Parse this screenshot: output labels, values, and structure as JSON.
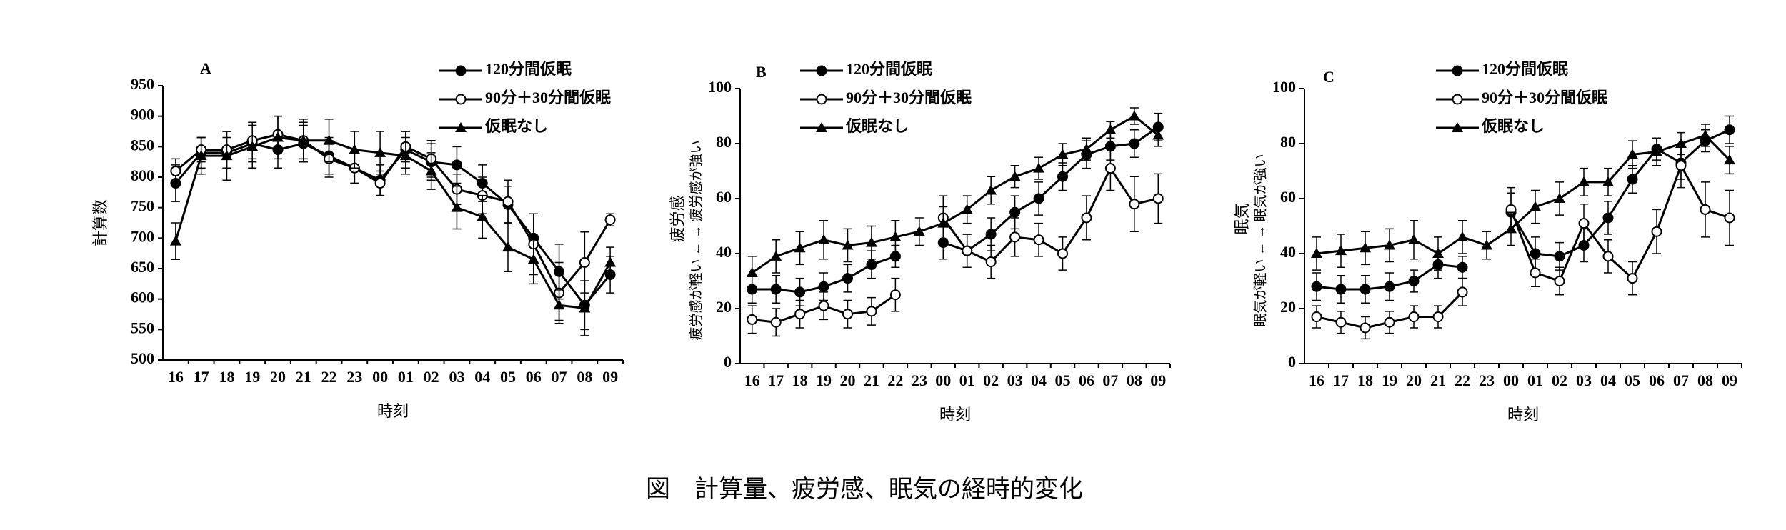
{
  "caption": "図　計算量、疲労感、眠気の経時的変化",
  "chart_data": [
    {
      "type": "line",
      "panel": "A",
      "ylabel": "計算数",
      "xlabel": "時刻",
      "categories": [
        "16",
        "17",
        "18",
        "19",
        "20",
        "21",
        "22",
        "23",
        "00",
        "01",
        "02",
        "03",
        "04",
        "05",
        "06",
        "07",
        "08",
        "09"
      ],
      "ylim": [
        500,
        950
      ],
      "yticks": [
        500,
        550,
        600,
        650,
        700,
        750,
        800,
        850,
        900,
        950
      ],
      "series": [
        {
          "name": "120分間仮眠",
          "color": "#000000",
          "marker": "filled-circle",
          "values": [
            790,
            840,
            840,
            855,
            845,
            855,
            835,
            815,
            795,
            845,
            825,
            820,
            790,
            755,
            700,
            645,
            590,
            640
          ],
          "errors": [
            30,
            25,
            25,
            30,
            30,
            30,
            30,
            25,
            25,
            30,
            30,
            30,
            30,
            30,
            40,
            45,
            40,
            30
          ]
        },
        {
          "name": "90分＋30分間仮眠",
          "color": "#000000",
          "marker": "open-circle",
          "values": [
            810,
            845,
            845,
            860,
            870,
            860,
            830,
            815,
            790,
            850,
            830,
            780,
            770,
            760,
            690,
            610,
            660,
            730
          ],
          "errors": [
            20,
            20,
            30,
            30,
            30,
            30,
            30,
            25,
            20,
            25,
            30,
            25,
            30,
            35,
            50,
            50,
            50,
            10
          ]
        },
        {
          "name": "仮眠なし",
          "color": "#000000",
          "marker": "triangle",
          "values": [
            695,
            835,
            835,
            850,
            865,
            860,
            860,
            845,
            840,
            835,
            810,
            750,
            735,
            685,
            665,
            590,
            585,
            660
          ],
          "errors": [
            30,
            30,
            40,
            35,
            35,
            35,
            35,
            30,
            35,
            30,
            30,
            35,
            35,
            40,
            40,
            25,
            45,
            25
          ]
        }
      ]
    },
    {
      "type": "line",
      "panel": "B",
      "ylabel": "疲労感",
      "ylabel_sub": "疲労感が軽い ← → 疲労感が強い",
      "xlabel": "時刻",
      "categories": [
        "16",
        "17",
        "18",
        "19",
        "20",
        "21",
        "22",
        "23",
        "00",
        "01",
        "02",
        "03",
        "04",
        "05",
        "06",
        "07",
        "08",
        "09"
      ],
      "ylim": [
        0,
        100
      ],
      "yticks": [
        0,
        20,
        40,
        60,
        80,
        100
      ],
      "series": [
        {
          "name": "120分間仮眠",
          "color": "#000000",
          "marker": "filled-circle",
          "values": [
            27,
            27,
            26,
            28,
            31,
            36,
            39,
            null,
            44,
            41,
            47,
            55,
            60,
            68,
            76,
            79,
            80,
            86
          ],
          "errors": [
            5,
            5,
            5,
            5,
            5,
            5,
            4,
            null,
            6,
            6,
            6,
            6,
            6,
            5,
            5,
            5,
            5,
            5
          ]
        },
        {
          "name": "90分＋30分間仮眠",
          "color": "#000000",
          "marker": "open-circle",
          "values": [
            16,
            15,
            18,
            21,
            18,
            19,
            25,
            null,
            53,
            41,
            37,
            46,
            45,
            40,
            53,
            71,
            58,
            60
          ],
          "errors": [
            5,
            5,
            5,
            5,
            5,
            5,
            6,
            null,
            8,
            6,
            6,
            7,
            6,
            6,
            8,
            8,
            10,
            9
          ]
        },
        {
          "name": "仮眠なし",
          "color": "#000000",
          "marker": "triangle",
          "values": [
            33,
            39,
            42,
            45,
            43,
            44,
            46,
            48,
            51,
            56,
            63,
            68,
            71,
            76,
            78,
            85,
            90,
            83
          ],
          "errors": [
            6,
            6,
            6,
            7,
            6,
            6,
            6,
            5,
            6,
            5,
            5,
            4,
            4,
            4,
            4,
            3,
            3,
            4
          ]
        }
      ]
    },
    {
      "type": "line",
      "panel": "C",
      "ylabel": "眠気",
      "ylabel_sub": "眠気が軽い ← → 眠気が強い",
      "xlabel": "時刻",
      "categories": [
        "16",
        "17",
        "18",
        "19",
        "20",
        "21",
        "22",
        "23",
        "00",
        "01",
        "02",
        "03",
        "04",
        "05",
        "06",
        "07",
        "08",
        "09"
      ],
      "ylim": [
        0,
        100
      ],
      "yticks": [
        0,
        20,
        40,
        60,
        80,
        100
      ],
      "series": [
        {
          "name": "120分間仮眠",
          "color": "#000000",
          "marker": "filled-circle",
          "values": [
            28,
            27,
            27,
            28,
            30,
            36,
            35,
            null,
            55,
            40,
            39,
            43,
            53,
            67,
            78,
            73,
            81,
            85
          ],
          "errors": [
            5,
            5,
            5,
            5,
            4,
            5,
            4,
            null,
            7,
            6,
            5,
            6,
            6,
            5,
            4,
            6,
            4,
            5
          ]
        },
        {
          "name": "90分＋30分間仮眠",
          "color": "#000000",
          "marker": "open-circle",
          "values": [
            17,
            15,
            13,
            15,
            17,
            17,
            26,
            null,
            56,
            33,
            30,
            51,
            39,
            31,
            48,
            72,
            56,
            53
          ],
          "errors": [
            4,
            4,
            4,
            4,
            4,
            4,
            5,
            null,
            8,
            5,
            5,
            7,
            6,
            6,
            8,
            8,
            10,
            10
          ]
        },
        {
          "name": "仮眠なし",
          "color": "#000000",
          "marker": "triangle",
          "values": [
            40,
            41,
            42,
            43,
            45,
            40,
            46,
            43,
            49,
            57,
            60,
            66,
            66,
            76,
            77,
            80,
            83,
            74
          ],
          "errors": [
            6,
            6,
            6,
            6,
            7,
            6,
            6,
            5,
            6,
            6,
            6,
            5,
            5,
            5,
            5,
            4,
            4,
            5
          ]
        }
      ]
    }
  ]
}
